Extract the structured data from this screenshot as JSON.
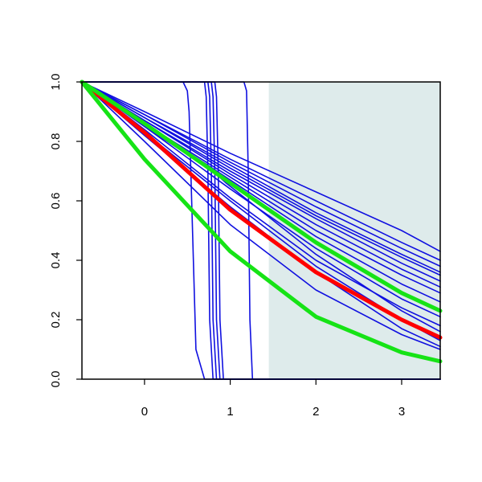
{
  "chart_data": {
    "type": "line",
    "title": "",
    "xlabel": "",
    "ylabel": "",
    "xlim": [
      -0.73,
      3.45
    ],
    "ylim": [
      0.0,
      1.0
    ],
    "x_ticks": [
      0,
      1,
      2,
      3
    ],
    "x_tick_labels": [
      "0",
      "1",
      "2",
      "3"
    ],
    "y_ticks": [
      0.0,
      0.2,
      0.4,
      0.6,
      0.8,
      1.0
    ],
    "y_tick_labels": [
      "0.0",
      "0.2",
      "0.4",
      "0.6",
      "0.8",
      "1.0"
    ],
    "grid": false,
    "shaded_region": {
      "x": [
        1.45,
        3.45
      ],
      "color": "#deebeb"
    },
    "colors": {
      "thin": "#1010e0",
      "highlight_red": "#ff0000",
      "highlight_green": "#16e316"
    },
    "series": [
      {
        "color_key": "highlight_red",
        "kind": "thick",
        "x": [
          -0.73,
          0.0,
          1.0,
          2.0,
          3.0,
          3.45
        ],
        "values": [
          1.0,
          0.83,
          0.57,
          0.36,
          0.2,
          0.14
        ]
      },
      {
        "color_key": "highlight_green",
        "kind": "thick",
        "x": [
          -0.73,
          0.0,
          1.0,
          2.0,
          3.0,
          3.45
        ],
        "values": [
          1.0,
          0.74,
          0.43,
          0.21,
          0.09,
          0.06
        ]
      },
      {
        "color_key": "highlight_green",
        "kind": "thick",
        "x": [
          -0.73,
          0.0,
          1.0,
          2.0,
          3.0,
          3.45
        ],
        "values": [
          1.0,
          0.86,
          0.66,
          0.46,
          0.29,
          0.23
        ]
      },
      {
        "color_key": "thin",
        "kind": "thin",
        "x": [
          -0.73,
          0.0,
          1.0,
          2.0,
          3.0,
          3.45
        ],
        "values": [
          1.0,
          0.9,
          0.76,
          0.63,
          0.5,
          0.43
        ]
      },
      {
        "color_key": "thin",
        "kind": "thin",
        "x": [
          -0.73,
          0.0,
          1.0,
          2.0,
          3.0,
          3.45
        ],
        "values": [
          1.0,
          0.89,
          0.74,
          0.6,
          0.46,
          0.4
        ]
      },
      {
        "color_key": "thin",
        "kind": "thin",
        "x": [
          -0.73,
          0.0,
          1.0,
          2.0,
          3.0,
          3.45
        ],
        "values": [
          1.0,
          0.89,
          0.73,
          0.58,
          0.44,
          0.38
        ]
      },
      {
        "color_key": "thin",
        "kind": "thin",
        "x": [
          -0.73,
          0.0,
          1.0,
          2.0,
          3.0,
          3.45
        ],
        "values": [
          1.0,
          0.88,
          0.72,
          0.56,
          0.42,
          0.36
        ]
      },
      {
        "color_key": "thin",
        "kind": "thin",
        "x": [
          -0.73,
          0.0,
          1.0,
          2.0,
          3.0,
          3.45
        ],
        "values": [
          1.0,
          0.88,
          0.71,
          0.55,
          0.41,
          0.35
        ]
      },
      {
        "color_key": "thin",
        "kind": "thin",
        "x": [
          -0.73,
          0.0,
          1.0,
          2.0,
          3.0,
          3.45
        ],
        "values": [
          1.0,
          0.87,
          0.7,
          0.54,
          0.39,
          0.33
        ]
      },
      {
        "color_key": "thin",
        "kind": "thin",
        "x": [
          -0.73,
          0.0,
          1.0,
          2.0,
          3.0,
          3.45
        ],
        "values": [
          1.0,
          0.87,
          0.69,
          0.52,
          0.37,
          0.31
        ]
      },
      {
        "color_key": "thin",
        "kind": "thin",
        "x": [
          -0.73,
          0.0,
          1.0,
          2.0,
          3.0,
          3.45
        ],
        "values": [
          1.0,
          0.86,
          0.68,
          0.5,
          0.35,
          0.29
        ]
      },
      {
        "color_key": "thin",
        "kind": "thin",
        "x": [
          -0.73,
          0.0,
          1.0,
          2.0,
          3.0,
          3.45
        ],
        "values": [
          1.0,
          0.86,
          0.67,
          0.48,
          0.32,
          0.26
        ]
      },
      {
        "color_key": "thin",
        "kind": "thin",
        "x": [
          -0.73,
          0.0,
          1.0,
          2.0,
          3.0,
          3.45
        ],
        "values": [
          1.0,
          0.85,
          0.64,
          0.44,
          0.27,
          0.21
        ]
      },
      {
        "color_key": "thin",
        "kind": "thin",
        "x": [
          -0.73,
          0.0,
          1.0,
          2.0,
          3.0,
          3.45
        ],
        "values": [
          1.0,
          0.84,
          0.61,
          0.4,
          0.24,
          0.18
        ]
      },
      {
        "color_key": "thin",
        "kind": "thin",
        "x": [
          -0.73,
          0.0,
          1.0,
          2.0,
          3.0,
          3.45
        ],
        "values": [
          1.0,
          0.83,
          0.6,
          0.38,
          0.2,
          0.13
        ]
      },
      {
        "color_key": "thin",
        "kind": "thin",
        "x": [
          -0.73,
          0.0,
          1.0,
          2.0,
          3.0,
          3.45
        ],
        "values": [
          1.0,
          0.82,
          0.58,
          0.36,
          0.17,
          0.11
        ]
      },
      {
        "color_key": "thin",
        "kind": "thin",
        "x": [
          -0.73,
          0.0,
          1.0,
          2.0,
          3.0,
          3.45
        ],
        "values": [
          1.0,
          0.8,
          0.52,
          0.3,
          0.15,
          0.1
        ]
      },
      {
        "color_key": "thin",
        "kind": "thin",
        "x": [
          -0.73,
          0.0,
          0.8,
          0.95,
          1.3,
          2.0,
          3.0,
          3.45
        ],
        "values": [
          1.0,
          0.85,
          0.7,
          0.66,
          0.58,
          0.42,
          0.23,
          0.16
        ]
      },
      {
        "color_key": "thin",
        "kind": "thin",
        "x": [
          -0.73,
          0.45,
          0.5,
          0.52,
          0.55,
          0.6,
          0.7,
          3.45
        ],
        "values": [
          1.0,
          1.0,
          0.97,
          0.9,
          0.6,
          0.1,
          0.0,
          0.0
        ]
      },
      {
        "color_key": "thin",
        "kind": "thin",
        "x": [
          -0.73,
          0.7,
          0.72,
          0.74,
          0.76,
          0.8,
          3.45
        ],
        "values": [
          1.0,
          1.0,
          0.95,
          0.7,
          0.2,
          0.0,
          0.0
        ]
      },
      {
        "color_key": "thin",
        "kind": "thin",
        "x": [
          -0.73,
          0.74,
          0.76,
          0.78,
          0.8,
          0.84,
          3.45
        ],
        "values": [
          1.0,
          1.0,
          0.95,
          0.7,
          0.2,
          0.0,
          0.0
        ]
      },
      {
        "color_key": "thin",
        "kind": "thin",
        "x": [
          -0.73,
          0.78,
          0.8,
          0.82,
          0.84,
          0.88,
          3.45
        ],
        "values": [
          1.0,
          1.0,
          0.95,
          0.7,
          0.2,
          0.0,
          0.0
        ]
      },
      {
        "color_key": "thin",
        "kind": "thin",
        "x": [
          -0.73,
          0.82,
          0.84,
          0.86,
          0.88,
          0.92,
          3.45
        ],
        "values": [
          1.0,
          1.0,
          0.95,
          0.7,
          0.2,
          0.0,
          0.0
        ]
      },
      {
        "color_key": "thin",
        "kind": "thin",
        "x": [
          -0.73,
          1.16,
          1.19,
          1.21,
          1.23,
          1.26,
          3.45
        ],
        "values": [
          1.0,
          1.0,
          0.97,
          0.7,
          0.2,
          0.0,
          0.0
        ]
      }
    ]
  }
}
